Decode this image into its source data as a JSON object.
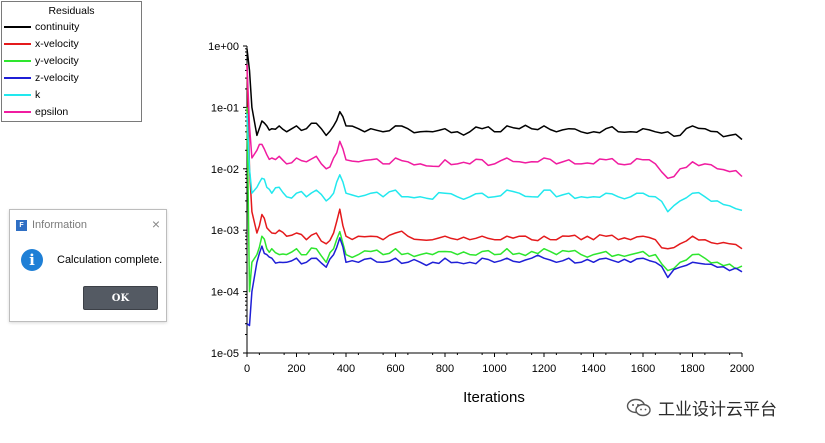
{
  "chart_data": {
    "type": "line",
    "xlabel": "Iterations",
    "ylabel": "",
    "xlim": [
      0,
      2000
    ],
    "ylim": [
      1e-05,
      1
    ],
    "yscale": "log",
    "x_ticks": [
      0,
      200,
      400,
      600,
      800,
      1000,
      1200,
      1400,
      1600,
      1800,
      2000
    ],
    "y_ticks": [
      1,
      0.1,
      0.01,
      0.001,
      0.0001,
      1e-05
    ],
    "y_tick_labels": [
      "1e+00",
      "1e-01",
      "1e-02",
      "1e-03",
      "1e-04",
      "1e-05"
    ],
    "grid": false,
    "legend_title": "Residuals",
    "legend_position": "top-left",
    "series": [
      {
        "name": "continuity",
        "color": "#000000",
        "x": [
          0,
          10,
          20,
          40,
          60,
          80,
          100,
          130,
          160,
          200,
          240,
          280,
          320,
          350,
          375,
          400,
          450,
          500,
          550,
          600,
          650,
          700,
          750,
          800,
          850,
          900,
          950,
          1000,
          1050,
          1100,
          1150,
          1200,
          1250,
          1300,
          1350,
          1400,
          1450,
          1500,
          1550,
          1600,
          1650,
          1700,
          1750,
          1800,
          1850,
          1900,
          1950,
          2000
        ],
        "y": [
          0.9,
          0.4,
          0.1,
          0.035,
          0.06,
          0.05,
          0.045,
          0.05,
          0.04,
          0.05,
          0.045,
          0.055,
          0.035,
          0.05,
          0.085,
          0.05,
          0.045,
          0.045,
          0.04,
          0.05,
          0.045,
          0.04,
          0.04,
          0.045,
          0.04,
          0.04,
          0.045,
          0.04,
          0.05,
          0.045,
          0.045,
          0.05,
          0.04,
          0.045,
          0.04,
          0.04,
          0.045,
          0.04,
          0.04,
          0.045,
          0.04,
          0.04,
          0.035,
          0.05,
          0.045,
          0.04,
          0.035,
          0.03
        ]
      },
      {
        "name": "x-velocity",
        "color": "#e41a1c",
        "x": [
          0,
          10,
          20,
          40,
          60,
          80,
          100,
          130,
          160,
          200,
          240,
          280,
          320,
          350,
          375,
          400,
          450,
          500,
          550,
          600,
          650,
          700,
          750,
          800,
          850,
          900,
          950,
          1000,
          1050,
          1100,
          1150,
          1200,
          1250,
          1300,
          1350,
          1400,
          1450,
          1500,
          1550,
          1600,
          1650,
          1700,
          1750,
          1800,
          1850,
          1900,
          1950,
          2000
        ],
        "y": [
          0.5,
          0.01,
          0.002,
          0.0009,
          0.0018,
          0.0011,
          0.0009,
          0.001,
          0.0008,
          0.0009,
          0.0007,
          0.0009,
          0.0006,
          0.0009,
          0.0022,
          0.0008,
          0.0008,
          0.0008,
          0.0007,
          0.0009,
          0.0008,
          0.0007,
          0.0007,
          0.0008,
          0.0007,
          0.0007,
          0.0008,
          0.0007,
          0.0008,
          0.0008,
          0.0007,
          0.0008,
          0.0007,
          0.0008,
          0.0007,
          0.0007,
          0.0008,
          0.0007,
          0.0007,
          0.0008,
          0.0007,
          0.0005,
          0.0006,
          0.0008,
          0.0007,
          0.0006,
          0.0006,
          0.0005
        ]
      },
      {
        "name": "y-velocity",
        "color": "#2ee62e",
        "x": [
          0,
          10,
          20,
          40,
          60,
          80,
          100,
          130,
          160,
          200,
          240,
          280,
          320,
          350,
          375,
          400,
          450,
          500,
          550,
          600,
          650,
          700,
          750,
          800,
          850,
          900,
          950,
          1000,
          1050,
          1100,
          1150,
          1200,
          1250,
          1300,
          1350,
          1400,
          1450,
          1500,
          1550,
          1600,
          1650,
          1700,
          1750,
          1800,
          1850,
          1900,
          1950,
          2000
        ],
        "y": [
          0.1,
          0.0001,
          0.0003,
          0.0004,
          0.0008,
          0.0005,
          0.0005,
          0.0004,
          0.0004,
          0.0005,
          0.0004,
          0.0005,
          0.0003,
          0.0005,
          0.00095,
          0.0004,
          0.0004,
          0.00045,
          0.0004,
          0.0005,
          0.00042,
          0.0004,
          0.0004,
          0.00045,
          0.0004,
          0.0004,
          0.00045,
          0.0004,
          0.0005,
          0.00042,
          0.00045,
          0.0005,
          0.0004,
          0.00045,
          0.0004,
          0.0004,
          0.00045,
          0.0004,
          0.0004,
          0.00045,
          0.0004,
          0.00022,
          0.0003,
          0.0004,
          0.00035,
          0.0003,
          0.00028,
          0.00026
        ]
      },
      {
        "name": "z-velocity",
        "color": "#1f1fd6",
        "x": [
          0,
          10,
          20,
          40,
          60,
          80,
          100,
          130,
          160,
          200,
          240,
          280,
          320,
          350,
          375,
          400,
          450,
          500,
          550,
          600,
          650,
          700,
          750,
          800,
          850,
          900,
          950,
          1000,
          1050,
          1100,
          1150,
          1200,
          1250,
          1300,
          1350,
          1400,
          1450,
          1500,
          1550,
          1600,
          1650,
          1700,
          1750,
          1800,
          1850,
          1900,
          1950,
          2000
        ],
        "y": [
          3e-05,
          2.8e-05,
          0.0001,
          0.0003,
          0.00055,
          0.0004,
          0.00035,
          0.0003,
          0.0003,
          0.00035,
          0.0003,
          0.00035,
          0.00025,
          0.0004,
          0.00075,
          0.0003,
          0.0003,
          0.00035,
          0.0003,
          0.00035,
          0.0003,
          0.0003,
          0.0003,
          0.00035,
          0.0003,
          0.0003,
          0.00035,
          0.0003,
          0.00035,
          0.0003,
          0.00035,
          0.00035,
          0.0003,
          0.00035,
          0.0003,
          0.0003,
          0.00035,
          0.0003,
          0.0003,
          0.00035,
          0.0003,
          0.00017,
          0.00025,
          0.0003,
          0.00028,
          0.00025,
          0.00022,
          0.00021
        ]
      },
      {
        "name": "k",
        "color": "#22e8ee",
        "x": [
          0,
          10,
          20,
          40,
          60,
          80,
          100,
          130,
          160,
          200,
          240,
          280,
          320,
          350,
          375,
          400,
          450,
          500,
          550,
          600,
          650,
          700,
          750,
          800,
          850,
          900,
          950,
          1000,
          1050,
          1100,
          1150,
          1200,
          1250,
          1300,
          1350,
          1400,
          1450,
          1500,
          1550,
          1600,
          1650,
          1700,
          1750,
          1800,
          1850,
          1900,
          1950,
          2000
        ],
        "y": [
          0.08,
          0.01,
          0.004,
          0.005,
          0.007,
          0.005,
          0.004,
          0.005,
          0.0035,
          0.004,
          0.0035,
          0.0045,
          0.003,
          0.004,
          0.008,
          0.004,
          0.0035,
          0.004,
          0.0035,
          0.0045,
          0.0035,
          0.0035,
          0.0032,
          0.004,
          0.0035,
          0.0035,
          0.004,
          0.0035,
          0.0045,
          0.004,
          0.0035,
          0.0045,
          0.0035,
          0.004,
          0.0035,
          0.0035,
          0.004,
          0.0035,
          0.0035,
          0.004,
          0.0035,
          0.002,
          0.003,
          0.004,
          0.0035,
          0.003,
          0.0025,
          0.0021
        ]
      },
      {
        "name": "epsilon",
        "color": "#f01ca0",
        "x": [
          0,
          10,
          20,
          40,
          60,
          80,
          100,
          130,
          160,
          200,
          240,
          280,
          320,
          350,
          375,
          400,
          450,
          500,
          550,
          600,
          650,
          700,
          750,
          800,
          850,
          900,
          950,
          1000,
          1050,
          1100,
          1150,
          1200,
          1250,
          1300,
          1350,
          1400,
          1450,
          1500,
          1550,
          1600,
          1650,
          1700,
          1750,
          1800,
          1850,
          1900,
          1950,
          2000
        ],
        "y": [
          0.5,
          0.05,
          0.015,
          0.02,
          0.025,
          0.017,
          0.015,
          0.016,
          0.012,
          0.015,
          0.013,
          0.016,
          0.01,
          0.015,
          0.028,
          0.014,
          0.013,
          0.014,
          0.012,
          0.015,
          0.013,
          0.012,
          0.011,
          0.014,
          0.012,
          0.012,
          0.014,
          0.012,
          0.015,
          0.013,
          0.013,
          0.015,
          0.012,
          0.014,
          0.012,
          0.012,
          0.014,
          0.012,
          0.012,
          0.014,
          0.012,
          0.007,
          0.01,
          0.013,
          0.012,
          0.01,
          0.009,
          0.0075
        ]
      }
    ]
  },
  "dialog": {
    "title": "Information",
    "message": "Calculation complete.",
    "ok_label": "OK",
    "close_glyph": "×",
    "app_icon_glyph": "F",
    "info_glyph": "i"
  },
  "watermark": {
    "text": "工业设计云平台"
  }
}
